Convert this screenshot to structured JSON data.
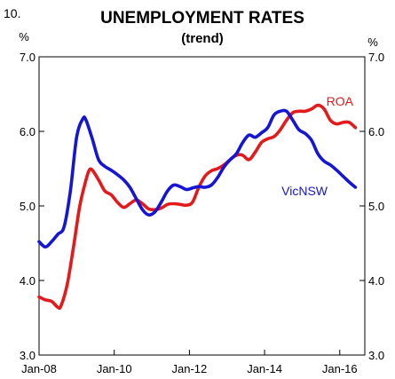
{
  "figure_number": "10.",
  "chart_data": {
    "type": "line",
    "title": "UNEMPLOYMENT RATES",
    "subtitle": "(trend)",
    "ylabel_left": "%",
    "ylabel_right": "%",
    "ylim": [
      3.0,
      7.0
    ],
    "yticks": [
      "3.0",
      "4.0",
      "5.0",
      "6.0",
      "7.0"
    ],
    "xlim": [
      "2008-01",
      "2016-09"
    ],
    "xticks": [
      {
        "date": "2008-01",
        "label": "Jan-08"
      },
      {
        "date": "2010-01",
        "label": "Jan-10"
      },
      {
        "date": "2012-01",
        "label": "Jan-12"
      },
      {
        "date": "2014-01",
        "label": "Jan-14"
      },
      {
        "date": "2016-01",
        "label": "Jan-16"
      }
    ],
    "grid": false,
    "legend": "inline labels",
    "series": [
      {
        "name": "ROA",
        "color": "#e31a1c",
        "points": [
          [
            "2008-01",
            3.78
          ],
          [
            "2008-03",
            3.74
          ],
          [
            "2008-05",
            3.72
          ],
          [
            "2008-07",
            3.64
          ],
          [
            "2008-08",
            3.66
          ],
          [
            "2008-10",
            3.95
          ],
          [
            "2008-12",
            4.45
          ],
          [
            "2009-02",
            5.0
          ],
          [
            "2009-04",
            5.35
          ],
          [
            "2009-05",
            5.48
          ],
          [
            "2009-06",
            5.48
          ],
          [
            "2009-08",
            5.35
          ],
          [
            "2009-10",
            5.2
          ],
          [
            "2009-12",
            5.15
          ],
          [
            "2010-02",
            5.05
          ],
          [
            "2010-04",
            4.98
          ],
          [
            "2010-06",
            5.03
          ],
          [
            "2010-08",
            5.08
          ],
          [
            "2010-10",
            5.03
          ],
          [
            "2010-12",
            4.96
          ],
          [
            "2011-02",
            4.95
          ],
          [
            "2011-04",
            4.97
          ],
          [
            "2011-06",
            5.02
          ],
          [
            "2011-08",
            5.03
          ],
          [
            "2011-10",
            5.02
          ],
          [
            "2011-12",
            5.01
          ],
          [
            "2012-02",
            5.05
          ],
          [
            "2012-04",
            5.25
          ],
          [
            "2012-06",
            5.4
          ],
          [
            "2012-08",
            5.47
          ],
          [
            "2012-10",
            5.5
          ],
          [
            "2012-12",
            5.55
          ],
          [
            "2013-02",
            5.62
          ],
          [
            "2013-04",
            5.68
          ],
          [
            "2013-06",
            5.68
          ],
          [
            "2013-08",
            5.62
          ],
          [
            "2013-10",
            5.72
          ],
          [
            "2013-12",
            5.85
          ],
          [
            "2014-02",
            5.9
          ],
          [
            "2014-04",
            5.93
          ],
          [
            "2014-06",
            6.02
          ],
          [
            "2014-08",
            6.15
          ],
          [
            "2014-10",
            6.25
          ],
          [
            "2014-12",
            6.27
          ],
          [
            "2015-02",
            6.27
          ],
          [
            "2015-04",
            6.3
          ],
          [
            "2015-06",
            6.35
          ],
          [
            "2015-08",
            6.3
          ],
          [
            "2015-10",
            6.15
          ],
          [
            "2015-12",
            6.1
          ],
          [
            "2016-02",
            6.12
          ],
          [
            "2016-04",
            6.12
          ],
          [
            "2016-06",
            6.05
          ]
        ]
      },
      {
        "name": "VicNSW",
        "color": "#1515d6",
        "points": [
          [
            "2008-01",
            4.52
          ],
          [
            "2008-03",
            4.45
          ],
          [
            "2008-05",
            4.52
          ],
          [
            "2008-07",
            4.62
          ],
          [
            "2008-09",
            4.72
          ],
          [
            "2008-11",
            5.2
          ],
          [
            "2009-01",
            5.92
          ],
          [
            "2009-03",
            6.17
          ],
          [
            "2009-04",
            6.15
          ],
          [
            "2009-06",
            5.9
          ],
          [
            "2009-08",
            5.62
          ],
          [
            "2009-10",
            5.53
          ],
          [
            "2009-12",
            5.48
          ],
          [
            "2010-02",
            5.42
          ],
          [
            "2010-04",
            5.35
          ],
          [
            "2010-06",
            5.25
          ],
          [
            "2010-08",
            5.1
          ],
          [
            "2010-10",
            4.95
          ],
          [
            "2010-12",
            4.88
          ],
          [
            "2011-02",
            4.92
          ],
          [
            "2011-04",
            5.05
          ],
          [
            "2011-06",
            5.2
          ],
          [
            "2011-08",
            5.28
          ],
          [
            "2011-10",
            5.26
          ],
          [
            "2011-12",
            5.22
          ],
          [
            "2012-02",
            5.24
          ],
          [
            "2012-04",
            5.26
          ],
          [
            "2012-06",
            5.25
          ],
          [
            "2012-08",
            5.28
          ],
          [
            "2012-10",
            5.38
          ],
          [
            "2012-12",
            5.52
          ],
          [
            "2013-02",
            5.62
          ],
          [
            "2013-04",
            5.7
          ],
          [
            "2013-06",
            5.85
          ],
          [
            "2013-08",
            5.95
          ],
          [
            "2013-10",
            5.92
          ],
          [
            "2013-12",
            5.98
          ],
          [
            "2014-02",
            6.05
          ],
          [
            "2014-04",
            6.22
          ],
          [
            "2014-06",
            6.27
          ],
          [
            "2014-08",
            6.27
          ],
          [
            "2014-10",
            6.15
          ],
          [
            "2014-12",
            6.02
          ],
          [
            "2015-02",
            5.97
          ],
          [
            "2015-04",
            5.88
          ],
          [
            "2015-06",
            5.7
          ],
          [
            "2015-08",
            5.6
          ],
          [
            "2015-10",
            5.55
          ],
          [
            "2015-12",
            5.48
          ],
          [
            "2016-02",
            5.4
          ],
          [
            "2016-04",
            5.32
          ],
          [
            "2016-06",
            5.25
          ]
        ]
      }
    ]
  }
}
